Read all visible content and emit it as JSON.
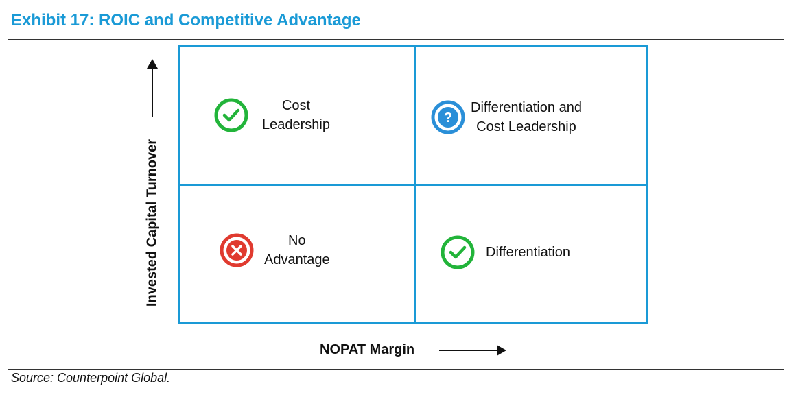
{
  "header": {
    "title": "Exhibit 17: ROIC and Competitive Advantage"
  },
  "axes": {
    "y_label": "Invested Capital Turnover",
    "x_label": "NOPAT Margin"
  },
  "quadrants": [
    {
      "position": "top-left",
      "lines": [
        "Cost",
        "Leadership"
      ],
      "icon": "check-icon",
      "icon_color": "#22b43a"
    },
    {
      "position": "top-right",
      "lines": [
        "Differentiation and",
        "Cost Leadership"
      ],
      "icon": "question-icon",
      "icon_color": "#2a8fd8"
    },
    {
      "position": "bottom-left",
      "lines": [
        "No",
        "Advantage"
      ],
      "icon": "x-icon",
      "icon_color": "#e03a2f"
    },
    {
      "position": "bottom-right",
      "lines": [
        "Differentiation"
      ],
      "icon": "check-icon",
      "icon_color": "#22b43a"
    }
  ],
  "colors": {
    "title": "#1a9ad6",
    "grid": "#1a9ad6"
  },
  "footer": {
    "source": "Source: Counterpoint Global."
  }
}
